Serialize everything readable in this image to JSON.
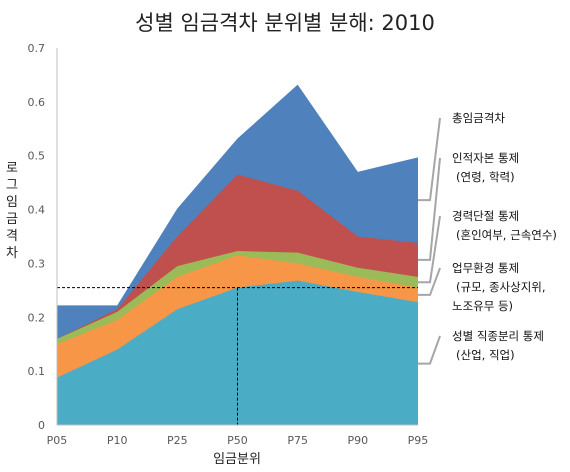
{
  "chart_data": {
    "type": "area",
    "title": "성별 임금격차 분위별 분해: 2010",
    "xlabel": "임금분위",
    "ylabel": "로그 임금격차",
    "categories": [
      "P05",
      "P10",
      "P25",
      "P50",
      "P75",
      "P90",
      "P95"
    ],
    "yticks": [
      "0",
      "0.1",
      "0.2",
      "0.3",
      "0.4",
      "0.5",
      "0.6",
      "0.7"
    ],
    "ylim": [
      0,
      0.7
    ],
    "grid": false,
    "reference_line": {
      "y": 0.255,
      "x_category": "P50"
    },
    "series": [
      {
        "name": "성별 직종분리 통제 (산업, 직업)",
        "color": "#4bacc6",
        "values": [
          0.088,
          0.14,
          0.215,
          0.255,
          0.268,
          0.247,
          0.228
        ]
      },
      {
        "name": "업무환경 통제 (규모, 종사상지위, 노조유무 등)",
        "color": "#f79646",
        "values": [
          0.15,
          0.195,
          0.275,
          0.315,
          0.3,
          0.275,
          0.255
        ]
      },
      {
        "name": "경력단절 통제 (혼인여부, 근속연수)",
        "color": "#9bbb59",
        "values": [
          0.16,
          0.21,
          0.295,
          0.323,
          0.32,
          0.292,
          0.275
        ]
      },
      {
        "name": "인적자본 통제 (연령, 학력)",
        "color": "#c0504d",
        "values": [
          0.16,
          0.215,
          0.35,
          0.465,
          0.435,
          0.35,
          0.338
        ]
      },
      {
        "name": "총임금격차",
        "color": "#4f81bd",
        "values": [
          0.222,
          0.222,
          0.402,
          0.532,
          0.632,
          0.47,
          0.497
        ]
      }
    ],
    "legend": [
      {
        "lines": [
          "총임금격차"
        ],
        "series_index": 4
      },
      {
        "lines": [
          "인적자본 통제",
          "(연령, 학력)"
        ],
        "series_index": 3
      },
      {
        "lines": [
          "경력단절 통제",
          "(혼인여부, 근속연수)"
        ],
        "series_index": 2
      },
      {
        "lines": [
          "업무환경 통제",
          "(규모, 종사상지위,",
          "노조유무 등)"
        ],
        "series_index": 1
      },
      {
        "lines": [
          "성별 직종분리 통제",
          "(산업, 직업)"
        ],
        "series_index": 0
      }
    ],
    "legend_placement": "right",
    "leader_color": "#a6a6a6"
  }
}
